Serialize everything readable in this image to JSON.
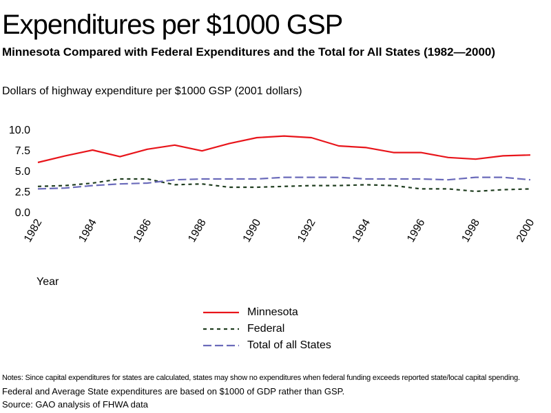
{
  "header": {
    "title": "Expenditures per $1000 GSP",
    "subtitle": "Minnesota Compared with Federal Expenditures and the Total for All States (1982—2000)",
    "unit_label": "Dollars of highway expenditure per $1000 GSP (2001 dollars)"
  },
  "chart_data": {
    "type": "line",
    "xlabel": "Year",
    "x": [
      1982,
      1983,
      1984,
      1985,
      1986,
      1987,
      1988,
      1989,
      1990,
      1991,
      1992,
      1993,
      1994,
      1995,
      1996,
      1997,
      1998,
      1999,
      2000
    ],
    "x_tick_labels": [
      "1982",
      "1984",
      "1986",
      "1988",
      "1990",
      "1992",
      "1994",
      "1996",
      "1998",
      "2000"
    ],
    "y_tick_labels": [
      "10.0",
      "7.5",
      "5.0",
      "2.5",
      "0.0"
    ],
    "ylim": [
      0,
      10
    ],
    "grid": false,
    "legend_position": "bottom-center",
    "series": [
      {
        "name": "Minnesota",
        "color": "#e8141a",
        "dash": "solid",
        "values": [
          6.0,
          6.8,
          7.5,
          6.7,
          7.6,
          8.1,
          7.4,
          8.3,
          9.0,
          9.2,
          9.0,
          8.0,
          7.8,
          7.2,
          7.2,
          6.6,
          6.4,
          6.8,
          6.9
        ]
      },
      {
        "name": "Federal",
        "color": "#1f3d1f",
        "dash": "short-dash",
        "values": [
          3.1,
          3.2,
          3.5,
          4.0,
          4.0,
          3.3,
          3.4,
          3.0,
          3.0,
          3.1,
          3.2,
          3.2,
          3.3,
          3.2,
          2.8,
          2.8,
          2.5,
          2.7,
          2.8
        ]
      },
      {
        "name": "Total of all States",
        "color": "#6a6aba",
        "dash": "long-dash",
        "values": [
          2.8,
          2.9,
          3.2,
          3.4,
          3.5,
          3.9,
          4.0,
          4.0,
          4.0,
          4.2,
          4.2,
          4.2,
          4.0,
          4.0,
          4.0,
          3.9,
          4.2,
          4.2,
          3.9
        ]
      }
    ]
  },
  "notes": {
    "line1": "Notes: Since capital expenditures for states are calculated, states may show no expenditures when federal funding exceeds reported state/local capital spending.",
    "line2": "Federal and Average State expenditures are based on $1000 of GDP rather than GSP.",
    "line3": "Source: GAO analysis of FHWA data"
  }
}
